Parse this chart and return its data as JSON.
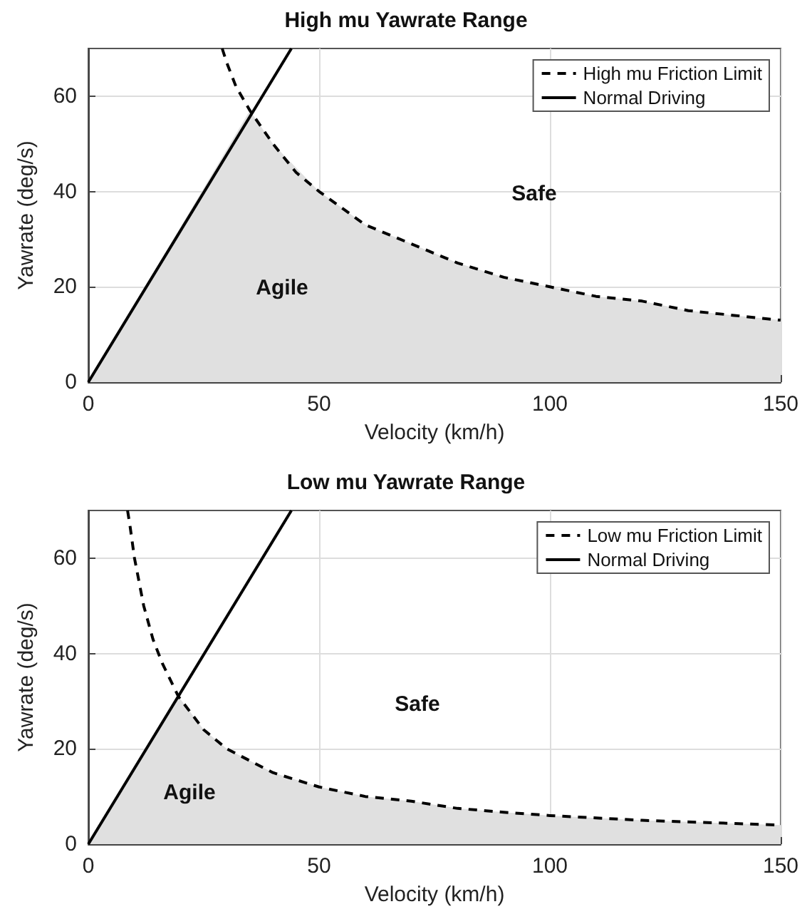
{
  "chart_data": [
    {
      "type": "line",
      "title": "High mu Yawrate Range",
      "xlabel": "Velocity (km/h)",
      "ylabel": "Yawrate (deg/s)",
      "xlim": [
        0,
        150
      ],
      "ylim": [
        0,
        70
      ],
      "xticks": [
        0,
        50,
        100,
        150
      ],
      "yticks": [
        0,
        20,
        40,
        60
      ],
      "grid": true,
      "legend": "top right",
      "marker": "none",
      "annotations": [
        "Agile",
        "Safe"
      ],
      "series": [
        {
          "type": "area",
          "color": "#e0e0e0",
          "x": [
            0,
            35,
            40,
            50,
            60,
            70,
            80,
            90,
            100,
            110,
            120,
            130,
            140,
            150
          ],
          "values": [
            0,
            57,
            50,
            40,
            33,
            29,
            25,
            22,
            20,
            18,
            17,
            15,
            14,
            13
          ]
        },
        {
          "name": "High mu Friction Limit",
          "color": "#000000",
          "line_style": "dashed",
          "x": [
            29,
            30,
            32,
            35,
            40,
            45,
            50,
            60,
            70,
            80,
            90,
            100,
            110,
            120,
            130,
            140,
            150
          ],
          "values": [
            70,
            67,
            62,
            57,
            50,
            44,
            40,
            33,
            29,
            25,
            22,
            20,
            18,
            17,
            15,
            14,
            13
          ]
        },
        {
          "name": "Normal Driving",
          "color": "#000000",
          "line_style": "solid",
          "x": [
            0,
            44
          ],
          "values": [
            0,
            70
          ]
        }
      ]
    },
    {
      "type": "line",
      "title": "Low mu Yawrate Range",
      "xlabel": "Velocity (km/h)",
      "ylabel": "Yawrate (deg/s)",
      "xlim": [
        0,
        150
      ],
      "ylim": [
        0,
        70
      ],
      "xticks": [
        0,
        50,
        100,
        150
      ],
      "yticks": [
        0,
        20,
        40,
        60
      ],
      "grid": true,
      "legend": "top right",
      "marker": "none",
      "annotations": [
        "Agile",
        "Safe"
      ],
      "series": [
        {
          "type": "area",
          "color": "#e0e0e0",
          "x": [
            0,
            19.5,
            25,
            30,
            40,
            50,
            60,
            70,
            80,
            90,
            100,
            120,
            150
          ],
          "values": [
            0,
            31,
            24,
            20,
            15,
            12,
            10,
            9,
            7.5,
            6.7,
            6,
            5,
            4
          ]
        },
        {
          "name": "Low mu Friction Limit",
          "color": "#000000",
          "line_style": "dashed",
          "x": [
            8.5,
            9,
            10,
            12,
            14,
            16,
            19.5,
            25,
            30,
            40,
            50,
            60,
            70,
            80,
            90,
            100,
            120,
            150
          ],
          "values": [
            70,
            67,
            60,
            50,
            43,
            38,
            31,
            24,
            20,
            15,
            12,
            10,
            9,
            7.5,
            6.7,
            6,
            5,
            4
          ]
        },
        {
          "name": "Normal Driving",
          "color": "#000000",
          "line_style": "solid",
          "x": [
            0,
            44
          ],
          "values": [
            0,
            70
          ]
        }
      ]
    }
  ]
}
